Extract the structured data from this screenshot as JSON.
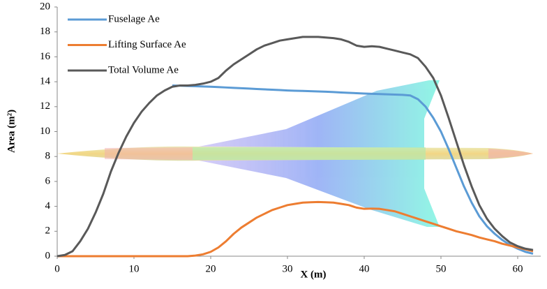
{
  "chart_data": {
    "type": "line",
    "x": [
      0,
      1,
      2,
      3,
      4,
      5,
      6,
      7,
      8,
      9,
      10,
      11,
      12,
      13,
      14,
      15,
      16,
      17,
      18,
      19,
      20,
      21,
      22,
      23,
      24,
      25,
      26,
      27,
      28,
      29,
      30,
      31,
      32,
      33,
      34,
      35,
      36,
      37,
      38,
      39,
      40,
      41,
      42,
      43,
      44,
      45,
      46,
      47,
      48,
      49,
      50,
      51,
      52,
      53,
      54,
      55,
      56,
      57,
      58,
      59,
      60,
      61,
      62
    ],
    "series": [
      {
        "name": "Fuselage Ae",
        "color": "#5b9bd5",
        "values": [
          null,
          null,
          null,
          null,
          null,
          null,
          null,
          null,
          null,
          null,
          null,
          null,
          null,
          null,
          null,
          13.7,
          13.68,
          13.66,
          13.64,
          13.62,
          13.6,
          13.57,
          13.54,
          13.51,
          13.48,
          13.45,
          13.42,
          13.39,
          13.36,
          13.33,
          13.3,
          13.28,
          13.26,
          13.24,
          13.22,
          13.2,
          13.17,
          13.14,
          13.11,
          13.08,
          13.05,
          13.03,
          13.01,
          12.99,
          12.97,
          12.95,
          12.9,
          12.6,
          12.0,
          11.1,
          10.0,
          8.6,
          7.1,
          5.6,
          4.3,
          3.2,
          2.4,
          1.8,
          1.3,
          0.9,
          0.6,
          0.35,
          0.2
        ]
      },
      {
        "name": "Lifting Surface Ae",
        "color": "#ed7d31",
        "values": [
          0,
          0,
          0,
          0,
          0,
          0,
          0,
          0,
          0,
          0,
          0,
          0,
          0,
          0,
          0,
          0,
          0,
          0,
          0.05,
          0.15,
          0.35,
          0.7,
          1.2,
          1.8,
          2.3,
          2.7,
          3.1,
          3.4,
          3.7,
          3.9,
          4.1,
          4.2,
          4.3,
          4.33,
          4.35,
          4.33,
          4.3,
          4.2,
          4.1,
          3.9,
          3.8,
          3.82,
          3.8,
          3.7,
          3.6,
          3.4,
          3.2,
          3.0,
          2.8,
          2.6,
          2.4,
          2.2,
          2.0,
          1.85,
          1.7,
          1.5,
          1.35,
          1.2,
          1.0,
          0.85,
          0.7,
          0.55,
          0.4
        ]
      },
      {
        "name": "Total Volume Ae",
        "color": "#595959",
        "values": [
          0,
          0.1,
          0.4,
          1.2,
          2.2,
          3.5,
          5.0,
          6.8,
          8.3,
          9.6,
          10.7,
          11.6,
          12.3,
          12.9,
          13.3,
          13.6,
          13.7,
          13.7,
          13.75,
          13.85,
          14.0,
          14.3,
          14.9,
          15.4,
          15.8,
          16.2,
          16.6,
          16.9,
          17.1,
          17.3,
          17.4,
          17.5,
          17.6,
          17.6,
          17.6,
          17.55,
          17.5,
          17.4,
          17.2,
          16.9,
          16.8,
          16.85,
          16.8,
          16.65,
          16.5,
          16.35,
          16.2,
          15.9,
          15.2,
          14.3,
          12.9,
          11.1,
          9.2,
          7.3,
          5.6,
          4.1,
          3.0,
          2.2,
          1.6,
          1.1,
          0.8,
          0.6,
          0.5
        ]
      }
    ],
    "x_label": "X (m)",
    "y_label": "Area (m²)",
    "xlim": [
      0,
      63
    ],
    "xticks": [
      0,
      10,
      20,
      30,
      40,
      50,
      60
    ],
    "ylim": [
      0,
      20
    ],
    "yticks": [
      0,
      2,
      4,
      6,
      8,
      10,
      12,
      14,
      16,
      18,
      20
    ],
    "grid": false,
    "legend": "upper left"
  }
}
